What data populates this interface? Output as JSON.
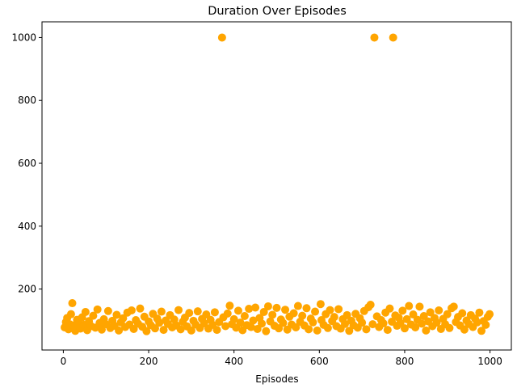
{
  "chart_data": {
    "type": "scatter",
    "title": "Duration Over Episodes",
    "xlabel": "Episodes",
    "ylabel": "",
    "xlim": [
      -50,
      1050
    ],
    "ylim": [
      6,
      1050
    ],
    "xticks": [
      0,
      200,
      400,
      600,
      800,
      1000
    ],
    "yticks": [
      200,
      400,
      600,
      800,
      1000
    ],
    "grid": false,
    "marker_color": "#FFA500",
    "series": [
      {
        "n_points": 1000,
        "typical_range": [
          55,
          150
        ],
        "points": [
          [
            3,
            78
          ],
          [
            6,
            95
          ],
          [
            9,
            108
          ],
          [
            12,
            72
          ],
          [
            15,
            88
          ],
          [
            18,
            120
          ],
          [
            21,
            155
          ],
          [
            24,
            84
          ],
          [
            28,
            67
          ],
          [
            32,
            102
          ],
          [
            36,
            91
          ],
          [
            40,
            74
          ],
          [
            44,
            110
          ],
          [
            48,
            86
          ],
          [
            52,
            127
          ],
          [
            56,
            69
          ],
          [
            60,
            98
          ],
          [
            65,
            82
          ],
          [
            70,
            115
          ],
          [
            75,
            77
          ],
          [
            80,
            135
          ],
          [
            85,
            92
          ],
          [
            90,
            71
          ],
          [
            95,
            104
          ],
          [
            100,
            88
          ],
          [
            105,
            130
          ],
          [
            110,
            76
          ],
          [
            115,
            99
          ],
          [
            120,
            83
          ],
          [
            125,
            118
          ],
          [
            130,
            68
          ],
          [
            135,
            94
          ],
          [
            140,
            107
          ],
          [
            145,
            79
          ],
          [
            150,
            125
          ],
          [
            155,
            87
          ],
          [
            160,
            132
          ],
          [
            165,
            73
          ],
          [
            170,
            101
          ],
          [
            175,
            90
          ],
          [
            180,
            138
          ],
          [
            185,
            80
          ],
          [
            190,
            112
          ],
          [
            195,
            66
          ],
          [
            200,
            97
          ],
          [
            205,
            85
          ],
          [
            210,
            121
          ],
          [
            215,
            75
          ],
          [
            220,
            106
          ],
          [
            225,
            93
          ],
          [
            230,
            128
          ],
          [
            235,
            70
          ],
          [
            240,
            100
          ],
          [
            245,
            89
          ],
          [
            250,
            117
          ],
          [
            255,
            78
          ],
          [
            260,
            103
          ],
          [
            265,
            84
          ],
          [
            270,
            133
          ],
          [
            275,
            72
          ],
          [
            280,
            96
          ],
          [
            285,
            109
          ],
          [
            290,
            81
          ],
          [
            295,
            124
          ],
          [
            300,
            68
          ],
          [
            305,
            99
          ],
          [
            310,
            87
          ],
          [
            315,
            129
          ],
          [
            320,
            76
          ],
          [
            325,
            105
          ],
          [
            330,
            91
          ],
          [
            335,
            119
          ],
          [
            340,
            74
          ],
          [
            345,
            102
          ],
          [
            350,
            86
          ],
          [
            355,
            126
          ],
          [
            360,
            70
          ],
          [
            365,
            95
          ],
          [
            372,
            1000
          ],
          [
            375,
            110
          ],
          [
            380,
            82
          ],
          [
            385,
            122
          ],
          [
            390,
            147
          ],
          [
            395,
            88
          ],
          [
            400,
            104
          ],
          [
            405,
            77
          ],
          [
            410,
            131
          ],
          [
            415,
            93
          ],
          [
            420,
            69
          ],
          [
            425,
            114
          ],
          [
            430,
            85
          ],
          [
            435,
            137
          ],
          [
            440,
            79
          ],
          [
            445,
            100
          ],
          [
            450,
            141
          ],
          [
            455,
            73
          ],
          [
            460,
            108
          ],
          [
            465,
            90
          ],
          [
            470,
            127
          ],
          [
            475,
            66
          ],
          [
            480,
            145
          ],
          [
            485,
            97
          ],
          [
            490,
            118
          ],
          [
            495,
            83
          ],
          [
            500,
            140
          ],
          [
            505,
            75
          ],
          [
            510,
            103
          ],
          [
            515,
            92
          ],
          [
            520,
            134
          ],
          [
            525,
            71
          ],
          [
            530,
            112
          ],
          [
            535,
            87
          ],
          [
            540,
            123
          ],
          [
            545,
            78
          ],
          [
            550,
            146
          ],
          [
            555,
            96
          ],
          [
            560,
            115
          ],
          [
            565,
            84
          ],
          [
            570,
            139
          ],
          [
            575,
            72
          ],
          [
            580,
            106
          ],
          [
            585,
            94
          ],
          [
            590,
            128
          ],
          [
            595,
            68
          ],
          [
            603,
            152
          ],
          [
            605,
            101
          ],
          [
            610,
            86
          ],
          [
            615,
            120
          ],
          [
            620,
            76
          ],
          [
            625,
            133
          ],
          [
            630,
            98
          ],
          [
            635,
            111
          ],
          [
            640,
            82
          ],
          [
            645,
            136
          ],
          [
            650,
            74
          ],
          [
            655,
            104
          ],
          [
            660,
            89
          ],
          [
            665,
            117
          ],
          [
            670,
            67
          ],
          [
            675,
            99
          ],
          [
            680,
            85
          ],
          [
            685,
            121
          ],
          [
            690,
            77
          ],
          [
            695,
            107
          ],
          [
            700,
            93
          ],
          [
            705,
            130
          ],
          [
            710,
            72
          ],
          [
            715,
            142
          ],
          [
            720,
            150
          ],
          [
            725,
            88
          ],
          [
            729,
            1000
          ],
          [
            735,
            113
          ],
          [
            740,
            79
          ],
          [
            745,
            101
          ],
          [
            750,
            91
          ],
          [
            755,
            125
          ],
          [
            760,
            70
          ],
          [
            765,
            138
          ],
          [
            770,
            96
          ],
          [
            773,
            1000
          ],
          [
            778,
            116
          ],
          [
            782,
            83
          ],
          [
            786,
            109
          ],
          [
            790,
            92
          ],
          [
            795,
            131
          ],
          [
            800,
            75
          ],
          [
            805,
            104
          ],
          [
            810,
            146
          ],
          [
            815,
            87
          ],
          [
            820,
            119
          ],
          [
            825,
            78
          ],
          [
            830,
            102
          ],
          [
            835,
            144
          ],
          [
            840,
            90
          ],
          [
            845,
            114
          ],
          [
            850,
            68
          ],
          [
            855,
            97
          ],
          [
            860,
            126
          ],
          [
            865,
            82
          ],
          [
            870,
            108
          ],
          [
            875,
            93
          ],
          [
            880,
            132
          ],
          [
            885,
            73
          ],
          [
            890,
            105
          ],
          [
            895,
            88
          ],
          [
            900,
            120
          ],
          [
            905,
            76
          ],
          [
            910,
            139
          ],
          [
            915,
            144
          ],
          [
            920,
            95
          ],
          [
            925,
            111
          ],
          [
            930,
            84
          ],
          [
            935,
            123
          ],
          [
            940,
            71
          ],
          [
            945,
            100
          ],
          [
            950,
            89
          ],
          [
            955,
            117
          ],
          [
            960,
            79
          ],
          [
            965,
            106
          ],
          [
            970,
            94
          ],
          [
            975,
            125
          ],
          [
            980,
            67
          ],
          [
            985,
            98
          ],
          [
            990,
            86
          ],
          [
            995,
            112
          ],
          [
            999,
            120
          ]
        ]
      }
    ]
  }
}
